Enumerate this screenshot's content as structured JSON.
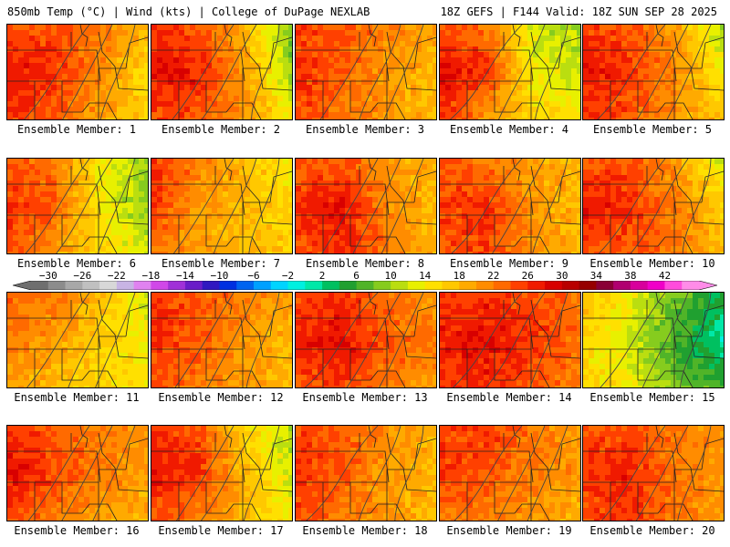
{
  "header": {
    "left": "850mb Temp (°C) | Wind (kts) | College of DuPage NEXLAB",
    "right": "18Z GEFS | F144 Valid: 18Z SUN SEP 28 2025"
  },
  "panels": [
    {
      "label": "Ensemble Member: 1",
      "temps": [
        [
          24,
          24,
          22,
          18
        ],
        [
          28,
          26,
          21,
          16
        ],
        [
          25,
          24,
          20,
          16
        ]
      ],
      "seed": 11
    },
    {
      "label": "Ensemble Member: 2",
      "temps": [
        [
          26,
          24,
          18,
          8
        ],
        [
          28,
          27,
          20,
          10
        ],
        [
          25,
          24,
          20,
          14
        ]
      ],
      "seed": 12
    },
    {
      "label": "Ensemble Member: 3",
      "temps": [
        [
          25,
          24,
          22,
          20
        ],
        [
          26,
          24,
          20,
          18
        ],
        [
          25,
          22,
          20,
          18
        ]
      ],
      "seed": 13
    },
    {
      "label": "Ensemble Member: 4",
      "temps": [
        [
          24,
          22,
          12,
          10
        ],
        [
          28,
          26,
          14,
          12
        ],
        [
          26,
          20,
          16,
          14
        ]
      ],
      "seed": 14
    },
    {
      "label": "Ensemble Member: 5",
      "temps": [
        [
          25,
          24,
          20,
          10
        ],
        [
          28,
          26,
          21,
          14
        ],
        [
          25,
          24,
          20,
          18
        ]
      ],
      "seed": 15
    },
    {
      "label": "Ensemble Member: 6",
      "temps": [
        [
          24,
          22,
          14,
          10
        ],
        [
          26,
          24,
          14,
          9
        ],
        [
          24,
          20,
          16,
          12
        ]
      ],
      "seed": 16
    },
    {
      "label": "Ensemble Member: 7",
      "temps": [
        [
          26,
          22,
          18,
          14
        ],
        [
          26,
          20,
          18,
          16
        ],
        [
          22,
          20,
          18,
          16
        ]
      ],
      "seed": 17
    },
    {
      "label": "Ensemble Member: 8",
      "temps": [
        [
          23,
          24,
          20,
          18
        ],
        [
          26,
          28,
          21,
          18
        ],
        [
          24,
          26,
          22,
          18
        ]
      ],
      "seed": 18
    },
    {
      "label": "Ensemble Member: 9",
      "temps": [
        [
          24,
          22,
          20,
          18
        ],
        [
          25,
          26,
          20,
          18
        ],
        [
          24,
          25,
          21,
          18
        ]
      ],
      "seed": 19
    },
    {
      "label": "Ensemble Member: 10",
      "temps": [
        [
          24,
          24,
          20,
          12
        ],
        [
          28,
          26,
          22,
          16
        ],
        [
          24,
          24,
          22,
          18
        ]
      ],
      "seed": 20
    },
    {
      "label": "Ensemble Member: 11",
      "temps": [
        [
          24,
          22,
          18,
          12
        ],
        [
          22,
          20,
          16,
          14
        ],
        [
          20,
          18,
          16,
          14
        ]
      ],
      "seed": 21
    },
    {
      "label": "Ensemble Member: 12",
      "temps": [
        [
          26,
          24,
          22,
          20
        ],
        [
          26,
          24,
          20,
          18
        ],
        [
          24,
          22,
          20,
          18
        ]
      ],
      "seed": 22
    },
    {
      "label": "Ensemble Member: 13",
      "temps": [
        [
          24,
          26,
          22,
          20
        ],
        [
          27,
          28,
          24,
          22
        ],
        [
          24,
          25,
          22,
          20
        ]
      ],
      "seed": 23
    },
    {
      "label": "Ensemble Member: 14",
      "temps": [
        [
          25,
          26,
          24,
          22
        ],
        [
          27,
          28,
          26,
          22
        ],
        [
          25,
          26,
          24,
          22
        ]
      ],
      "seed": 24
    },
    {
      "label": "Ensemble Member: 15",
      "temps": [
        [
          18,
          14,
          8,
          4
        ],
        [
          16,
          12,
          6,
          1
        ],
        [
          16,
          14,
          8,
          6
        ]
      ],
      "seed": 25
    },
    {
      "label": "Ensemble Member: 16",
      "temps": [
        [
          26,
          24,
          22,
          20
        ],
        [
          28,
          25,
          22,
          20
        ],
        [
          24,
          22,
          20,
          18
        ]
      ],
      "seed": 26
    },
    {
      "label": "Ensemble Member: 17",
      "temps": [
        [
          26,
          24,
          16,
          10
        ],
        [
          28,
          26,
          18,
          12
        ],
        [
          24,
          22,
          18,
          14
        ]
      ],
      "seed": 27
    },
    {
      "label": "Ensemble Member: 18",
      "temps": [
        [
          25,
          24,
          21,
          19
        ],
        [
          26,
          24,
          20,
          18
        ],
        [
          24,
          22,
          20,
          18
        ]
      ],
      "seed": 28
    },
    {
      "label": "Ensemble Member: 19",
      "temps": [
        [
          24,
          26,
          22,
          20
        ],
        [
          26,
          24,
          22,
          20
        ],
        [
          22,
          22,
          20,
          18
        ]
      ],
      "seed": 29
    },
    {
      "label": "Ensemble Member: 20",
      "temps": [
        [
          24,
          24,
          22,
          20
        ],
        [
          26,
          27,
          22,
          20
        ],
        [
          24,
          26,
          22,
          20
        ]
      ],
      "seed": 30
    }
  ],
  "colorbar": {
    "ticks": [
      "−30",
      "−26",
      "−22",
      "−18",
      "−14",
      "−10",
      "−6",
      "−2",
      "2",
      "6",
      "10",
      "14",
      "18",
      "22",
      "26",
      "30",
      "34",
      "38",
      "42"
    ],
    "tick_values": [
      -30,
      -26,
      -22,
      -18,
      -14,
      -10,
      -6,
      -2,
      2,
      6,
      10,
      14,
      18,
      22,
      26,
      30,
      34,
      38,
      42
    ],
    "range": [
      -32,
      44
    ],
    "step": 2,
    "colors": [
      "#6f6f6f",
      "#8c8c8c",
      "#a8a8a8",
      "#c0c0c0",
      "#d8d8d8",
      "#c8b4e4",
      "#e082f0",
      "#d048e8",
      "#a030d8",
      "#6a1cc8",
      "#3018c0",
      "#0030e0",
      "#0064f0",
      "#00a0ff",
      "#00d4ff",
      "#00f0e0",
      "#00e8a8",
      "#00c060",
      "#20a030",
      "#50b428",
      "#86cc1e",
      "#bade10",
      "#e8f000",
      "#ffe000",
      "#ffc800",
      "#ffaa00",
      "#ff8c00",
      "#ff6a00",
      "#ff4000",
      "#f01a00",
      "#d80000",
      "#b80000",
      "#960000",
      "#8a0036",
      "#b00070",
      "#d8009c",
      "#f000c8",
      "#ff4cdc",
      "#ff8ce8"
    ]
  }
}
